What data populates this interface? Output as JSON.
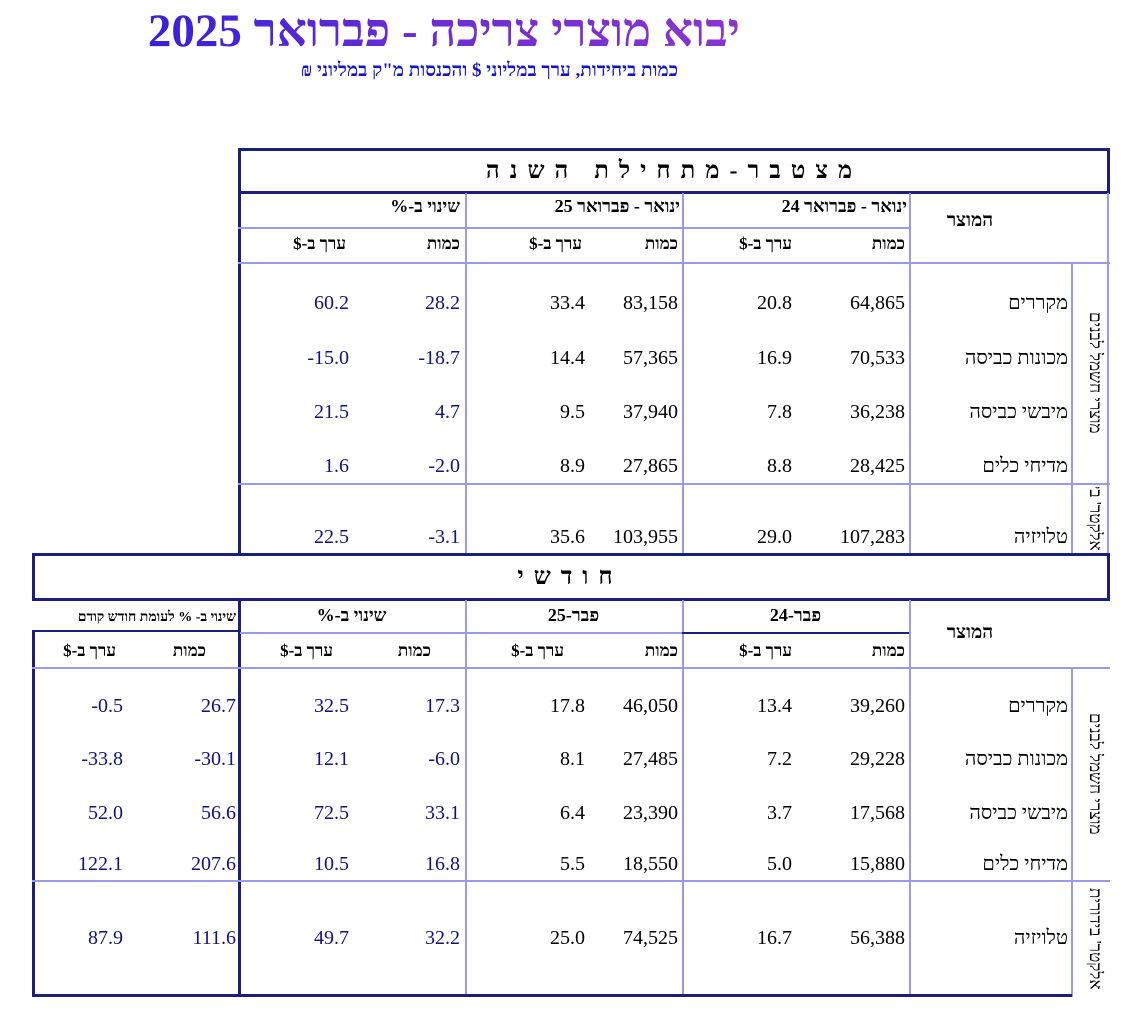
{
  "title": "יבוא מוצרי צריכה - פברואר 2025",
  "subtitle": "כמות ביחידות, ערך במליוני $ והכנסות מ\"ק במליוני ₪",
  "cumulative": {
    "banner": "מצטבר-מתחילת השנה",
    "product_header": "המוצר",
    "groups": [
      "ינואר - פברואר 24",
      "ינואר - פברואר 25",
      "שינוי ב-%"
    ],
    "qty_label": "כמות",
    "val_label": "ערך ב-$",
    "category_appliances": "מוצרי חשמל לבנים",
    "category_electronics": "אלקטר' בידור",
    "rows": [
      {
        "product": "מקררים",
        "v": [
          "64,865",
          "20.8",
          "83,158",
          "33.4",
          "28.2",
          "60.2"
        ]
      },
      {
        "product": "מכונות כביסה",
        "v": [
          "70,533",
          "16.9",
          "57,365",
          "14.4",
          "-18.7",
          "-15.0"
        ]
      },
      {
        "product": "מיבשי כביסה",
        "v": [
          "36,238",
          "7.8",
          "37,940",
          "9.5",
          "4.7",
          "21.5"
        ]
      },
      {
        "product": "מדיחי כלים",
        "v": [
          "28,425",
          "8.8",
          "27,865",
          "8.9",
          "-2.0",
          "1.6"
        ]
      },
      {
        "product": "טלויזיה",
        "v": [
          "107,283",
          "29.0",
          "103,955",
          "35.6",
          "-3.1",
          "22.5"
        ]
      }
    ]
  },
  "monthly": {
    "banner": "חודשי",
    "product_header": "המוצר",
    "groups": [
      "פבר-24",
      "פבר-25",
      "שינוי ב-%",
      "שינוי ב- % לעומת חודש קודם"
    ],
    "qty_label": "כמות",
    "val_label": "ערך ב-$",
    "category_appliances": "מוצרי חשמל לבנים",
    "category_electronics": "אלקטר' בידורית",
    "rows": [
      {
        "product": "מקררים",
        "v": [
          "39,260",
          "13.4",
          "46,050",
          "17.8",
          "17.3",
          "32.5",
          "26.7",
          "-0.5"
        ]
      },
      {
        "product": "מכונות כביסה",
        "v": [
          "29,228",
          "7.2",
          "27,485",
          "8.1",
          "-6.0",
          "12.1",
          "-30.1",
          "-33.8"
        ]
      },
      {
        "product": "מיבשי כביסה",
        "v": [
          "17,568",
          "3.7",
          "23,390",
          "6.4",
          "33.1",
          "72.5",
          "56.6",
          "52.0"
        ]
      },
      {
        "product": "מדיחי כלים",
        "v": [
          "15,880",
          "5.0",
          "18,550",
          "5.5",
          "16.8",
          "10.5",
          "207.6",
          "122.1"
        ]
      },
      {
        "product": "טלויזיה",
        "v": [
          "56,388",
          "16.7",
          "74,525",
          "25.0",
          "32.2",
          "49.7",
          "111.6",
          "87.9"
        ]
      }
    ]
  }
}
